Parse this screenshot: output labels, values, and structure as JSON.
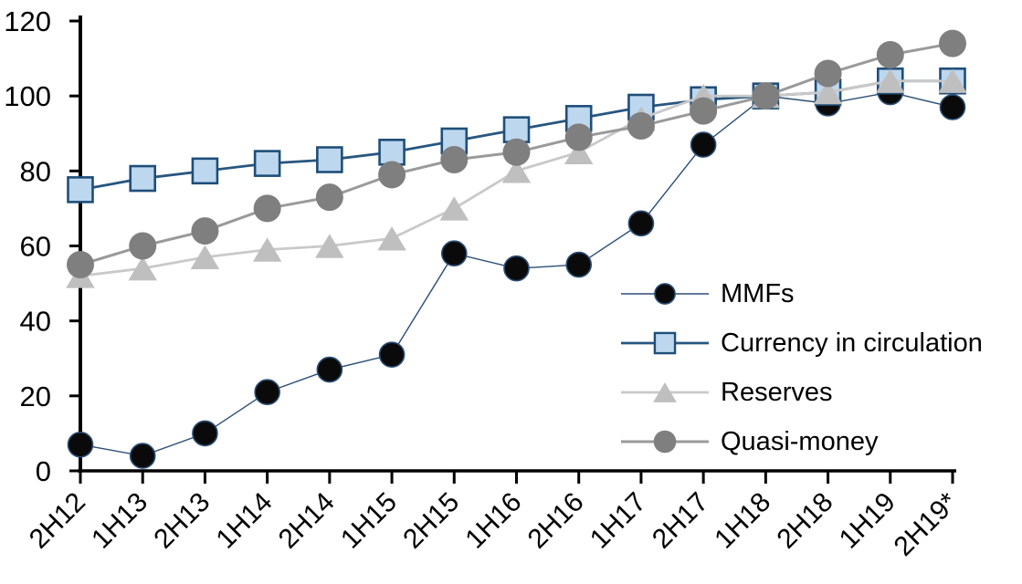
{
  "chart_data": {
    "type": "line",
    "title": "",
    "xlabel": "",
    "ylabel": "",
    "categories": [
      "2H12",
      "1H13",
      "2H13",
      "1H14",
      "2H14",
      "1H15",
      "2H15",
      "1H16",
      "2H16",
      "1H17",
      "2H17",
      "1H18",
      "2H18",
      "1H19",
      "2H19*"
    ],
    "y_ticks": [
      0,
      20,
      40,
      60,
      80,
      100,
      120
    ],
    "ylim": [
      0,
      120
    ],
    "grid": false,
    "legend_position": "inside-right",
    "background_color": "#ffffff",
    "axis_color": "#000000",
    "tick_label_color": "#000000",
    "series": [
      {
        "name": "MMFs",
        "marker": "circle",
        "marker_color": "#0a0a0a",
        "marker_border": "#2b4d76",
        "line_color": "#2b4d76",
        "line_width": 1.4,
        "marker_size": 27,
        "values": [
          7,
          4,
          10,
          21,
          27,
          31,
          58,
          54,
          55,
          66,
          87,
          100,
          98,
          101,
          97
        ]
      },
      {
        "name": "Currency in circulation",
        "marker": "square",
        "marker_color": "#bdd7ee",
        "marker_border": "#1f4e79",
        "line_color": "#27567f",
        "line_width": 2.8,
        "marker_size": 27,
        "values": [
          75,
          78,
          80,
          82,
          83,
          85,
          88,
          91,
          94,
          97,
          99,
          100,
          101,
          104,
          104
        ]
      },
      {
        "name": "Reserves",
        "marker": "triangle",
        "marker_color": "#bfbfbf",
        "marker_border": "",
        "line_color": "#c9c9c9",
        "line_width": 2.8,
        "marker_size": 30,
        "values": [
          52,
          54,
          57,
          59,
          60,
          62,
          70,
          80,
          85,
          94,
          100,
          100,
          101,
          104,
          104
        ]
      },
      {
        "name": "Quasi-money",
        "marker": "circle",
        "marker_color": "#7f7f7f",
        "marker_border": "",
        "line_color": "#9a9a9a",
        "line_width": 3,
        "marker_size": 30,
        "values": [
          55,
          60,
          64,
          70,
          73,
          79,
          83,
          85,
          89,
          92,
          96,
          100,
          106,
          111,
          114
        ]
      }
    ]
  }
}
